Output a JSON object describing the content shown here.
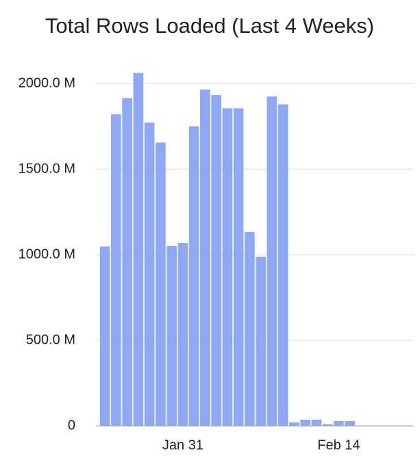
{
  "chart_data": {
    "type": "bar",
    "title": "Total Rows Loaded (Last 4 Weeks)",
    "categories": [
      null,
      null,
      null,
      null,
      null,
      null,
      null,
      "Jan 31",
      null,
      null,
      null,
      null,
      null,
      null,
      null,
      null,
      null,
      null,
      null,
      null,
      null,
      "Feb 14",
      null,
      null,
      null,
      null,
      null,
      null
    ],
    "values": [
      1048,
      1820,
      1915,
      2062,
      1772,
      1655,
      1052,
      1068,
      1750,
      1965,
      1932,
      1855,
      1855,
      1132,
      988,
      1925,
      1878,
      20,
      36,
      36,
      10,
      28,
      28,
      0,
      0,
      0,
      0,
      0
    ],
    "color": "#8fa8f5",
    "ylim": [
      0,
      2000
    ],
    "yticks": [
      0,
      {
        "value": 500,
        "label": "500.0 M"
      },
      {
        "value": 1000,
        "label": "1000.0 M"
      },
      {
        "value": 1500,
        "label": "1500.0 M"
      },
      {
        "value": 2000,
        "label": "2000.0 M"
      }
    ],
    "grid": true
  }
}
